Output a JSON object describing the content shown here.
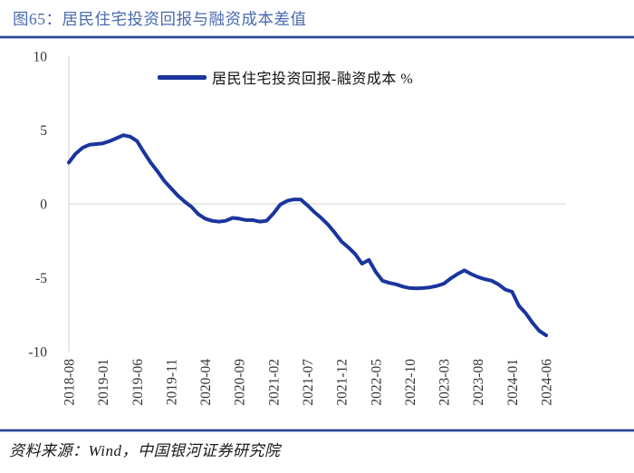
{
  "header": {
    "title": "图65：居民住宅投资回报与融资成本差值"
  },
  "footer": {
    "source": "资料来源：Wind，中国银河证券研究院"
  },
  "colors": {
    "title_blue": "#4a6bb0",
    "divider_navy": "#2b4590",
    "series_line": "#1a359e",
    "grid_gray": "#d9d9d9",
    "tick_text": "#333333"
  },
  "chart_data": {
    "type": "line",
    "title": "居民住宅投资回报与融资成本差值",
    "legend": "居民住宅投资回报-融资成本 %",
    "legend_position": "top-center",
    "unit": "%",
    "ylim": [
      -10,
      10
    ],
    "y_ticks": [
      "10",
      "5",
      "0",
      "-5",
      "-10"
    ],
    "y_tick_values": [
      10,
      5,
      0,
      -5,
      -10
    ],
    "grid": "zero-line-only",
    "x_tick_interval": 5,
    "x_tick_labels": [
      "2018-08",
      "2019-01",
      "2019-06",
      "2019-11",
      "2020-04",
      "2020-09",
      "2021-02",
      "2021-07",
      "2021-12",
      "2022-05",
      "2022-10",
      "2023-03",
      "2023-08",
      "2024-01",
      "2024-06"
    ],
    "x": [
      "2018-08",
      "2018-09",
      "2018-10",
      "2018-11",
      "2018-12",
      "2019-01",
      "2019-02",
      "2019-03",
      "2019-04",
      "2019-05",
      "2019-06",
      "2019-07",
      "2019-08",
      "2019-09",
      "2019-10",
      "2019-11",
      "2019-12",
      "2020-01",
      "2020-02",
      "2020-03",
      "2020-04",
      "2020-05",
      "2020-06",
      "2020-07",
      "2020-08",
      "2020-09",
      "2020-10",
      "2020-11",
      "2020-12",
      "2021-01",
      "2021-02",
      "2021-03",
      "2021-04",
      "2021-05",
      "2021-06",
      "2021-07",
      "2021-08",
      "2021-09",
      "2021-10",
      "2021-11",
      "2021-12",
      "2022-01",
      "2022-02",
      "2022-03",
      "2022-04",
      "2022-05",
      "2022-06",
      "2022-07",
      "2022-08",
      "2022-09",
      "2022-10",
      "2022-11",
      "2022-12",
      "2023-01",
      "2023-02",
      "2023-03",
      "2023-04",
      "2023-05",
      "2023-06",
      "2023-07",
      "2023-08",
      "2023-09",
      "2023-10",
      "2023-11",
      "2023-12",
      "2024-01",
      "2024-02",
      "2024-03",
      "2024-04",
      "2024-05",
      "2024-06"
    ],
    "values": [
      2.8,
      3.4,
      3.8,
      4.0,
      4.05,
      4.1,
      4.25,
      4.45,
      4.65,
      4.55,
      4.25,
      3.5,
      2.8,
      2.2,
      1.55,
      1.05,
      0.55,
      0.15,
      -0.2,
      -0.7,
      -1.0,
      -1.15,
      -1.2,
      -1.15,
      -0.95,
      -1.0,
      -1.1,
      -1.1,
      -1.2,
      -1.15,
      -0.65,
      -0.05,
      0.2,
      0.3,
      0.3,
      -0.1,
      -0.55,
      -0.95,
      -1.4,
      -1.95,
      -2.55,
      -2.95,
      -3.4,
      -4.05,
      -3.8,
      -4.6,
      -5.2,
      -5.35,
      -5.45,
      -5.6,
      -5.7,
      -5.72,
      -5.7,
      -5.65,
      -5.55,
      -5.4,
      -5.05,
      -4.75,
      -4.5,
      -4.75,
      -4.95,
      -5.1,
      -5.2,
      -5.45,
      -5.8,
      -5.95,
      -6.9,
      -7.4,
      -8.05,
      -8.6,
      -8.9
    ]
  }
}
